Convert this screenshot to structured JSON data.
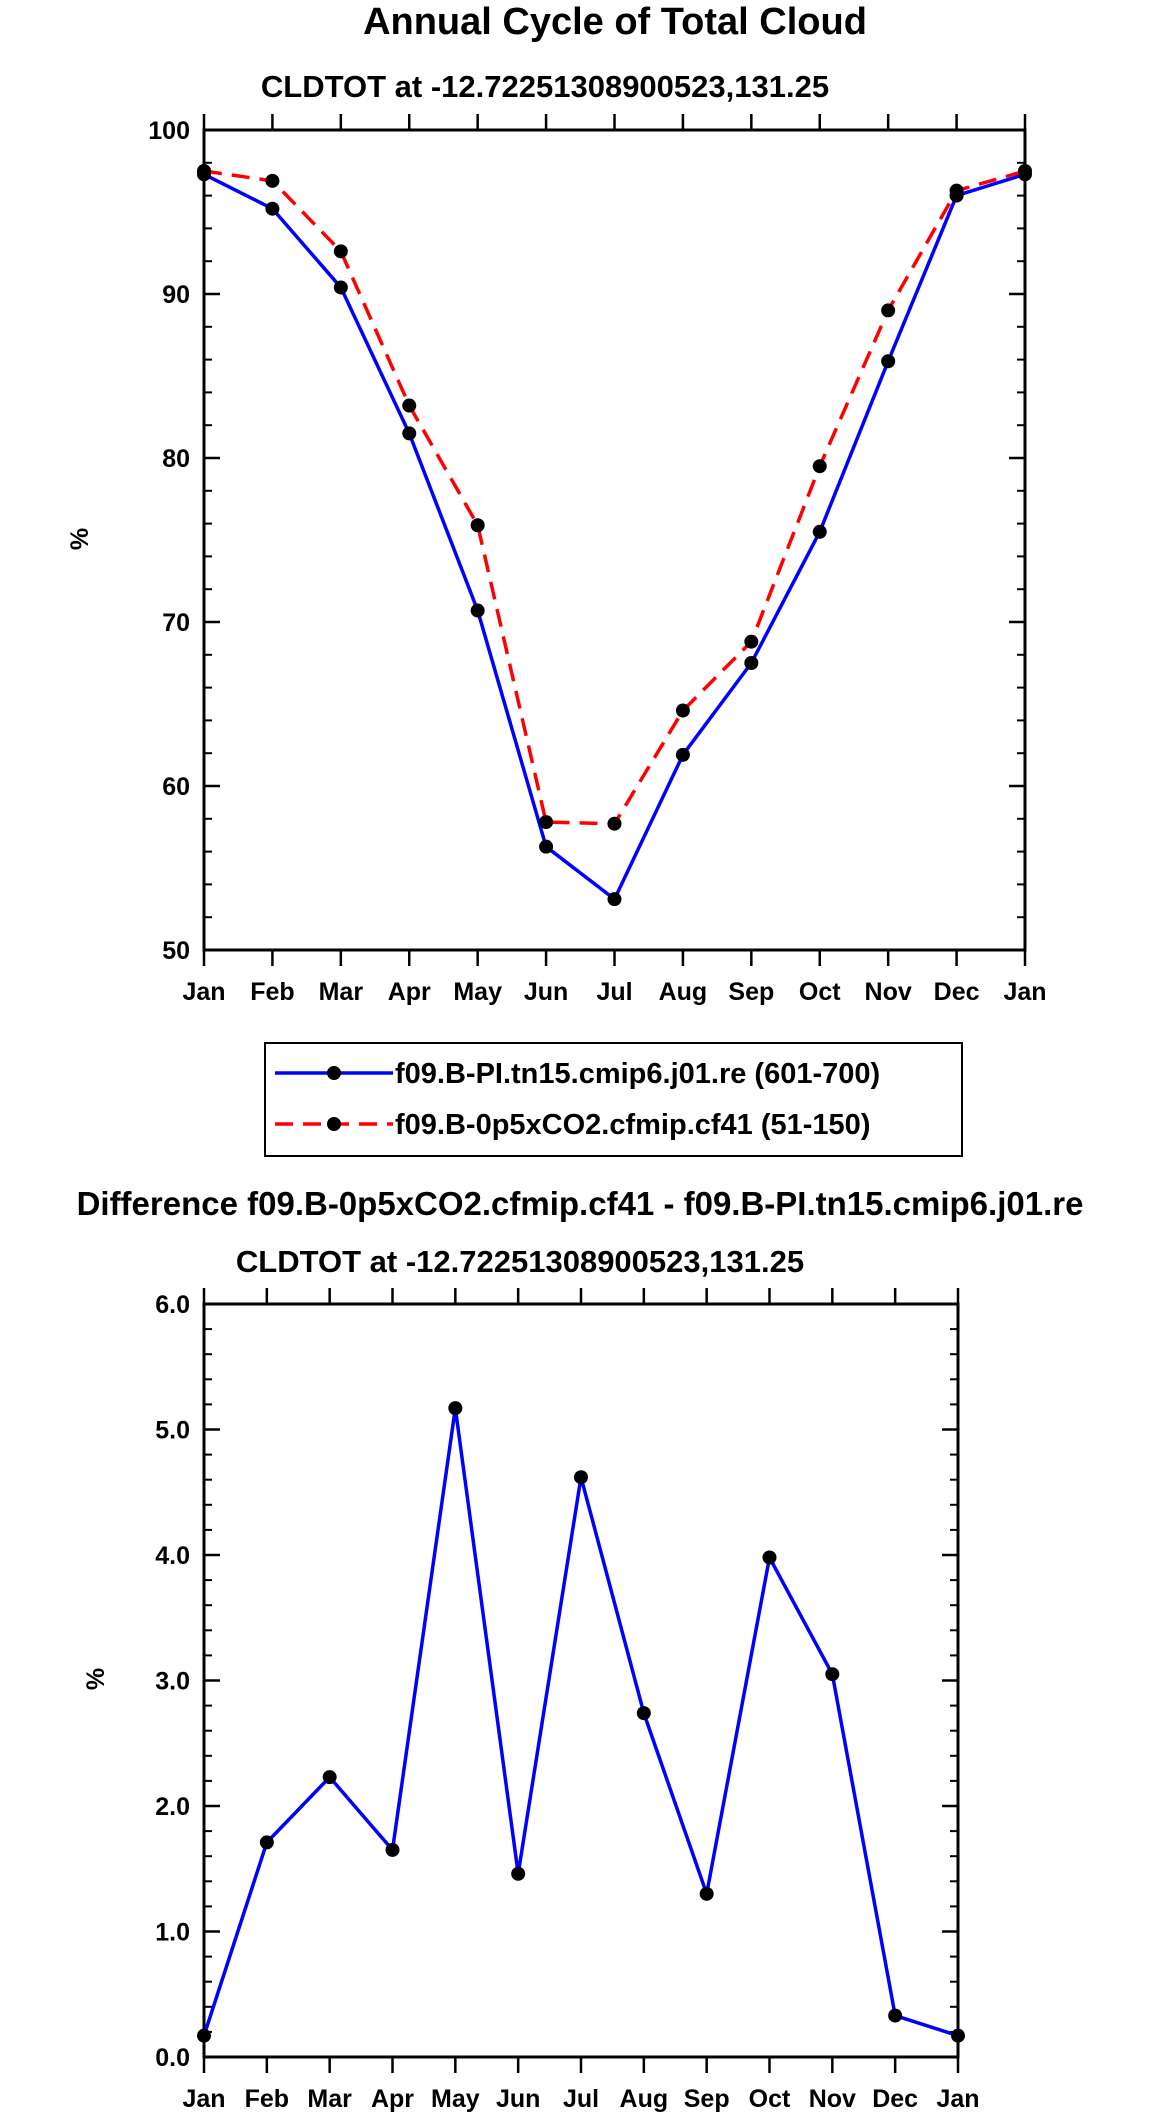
{
  "chart_data": [
    {
      "type": "line",
      "title": "Annual Cycle of Total Cloud",
      "subtitle": "CLDTOT at -12.72251308900523,131.25",
      "xlabel": "",
      "ylabel": "%",
      "categories": [
        "Jan",
        "Feb",
        "Mar",
        "Apr",
        "May",
        "Jun",
        "Jul",
        "Aug",
        "Sep",
        "Oct",
        "Nov",
        "Dec",
        "Jan"
      ],
      "ylim": [
        50,
        100
      ],
      "yticks": [
        "50",
        "60",
        "70",
        "80",
        "90",
        "100"
      ],
      "grid": false,
      "legend_position": "bottom",
      "series": [
        {
          "name": "f09.B-PI.tn15.cmip6.j01.re (601-700)",
          "color": "#0000ff",
          "dash": "solid",
          "values": [
            97.3,
            95.2,
            90.4,
            81.5,
            70.7,
            56.3,
            53.1,
            61.9,
            67.5,
            75.5,
            85.9,
            96.0,
            97.3
          ]
        },
        {
          "name": "f09.B-0p5xCO2.cfmip.cf41 (51-150)",
          "color": "#ff0000",
          "dash": "dashed",
          "values": [
            97.5,
            96.9,
            92.6,
            83.2,
            75.9,
            57.8,
            57.7,
            64.6,
            68.8,
            79.5,
            89.0,
            96.3,
            97.5
          ]
        }
      ]
    },
    {
      "type": "line",
      "title": "Difference f09.B-0p5xCO2.cfmip.cf41 - f09.B-PI.tn15.cmip6.j01.re",
      "subtitle": "CLDTOT at -12.72251308900523,131.25",
      "xlabel": "",
      "ylabel": "%",
      "categories": [
        "Jan",
        "Feb",
        "Mar",
        "Apr",
        "May",
        "Jun",
        "Jul",
        "Aug",
        "Sep",
        "Oct",
        "Nov",
        "Dec",
        "Jan"
      ],
      "ylim": [
        0,
        6
      ],
      "yticks": [
        "0.0",
        "1.0",
        "2.0",
        "3.0",
        "4.0",
        "5.0",
        "6.0"
      ],
      "grid": false,
      "series": [
        {
          "name": "difference",
          "color": "#0000ff",
          "dash": "solid",
          "values": [
            0.17,
            1.71,
            2.23,
            1.65,
            5.17,
            1.46,
            4.62,
            2.74,
            1.3,
            3.98,
            3.05,
            0.33,
            0.17
          ]
        }
      ]
    }
  ]
}
